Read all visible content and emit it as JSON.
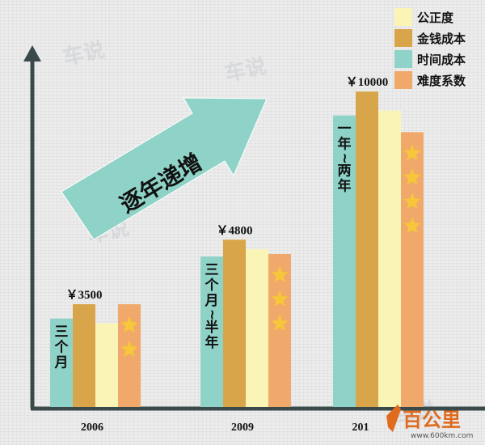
{
  "chart_data": {
    "type": "bar",
    "categories": [
      "2006",
      "2009",
      "201"
    ],
    "legend": [
      "公正度",
      "金钱成本",
      "时间成本",
      "难度系数"
    ],
    "price_labels": [
      "￥3500",
      "￥4800",
      "￥10000"
    ],
    "time_labels": [
      "三个月",
      "三个月~半年",
      "一年~两年"
    ],
    "series": [
      {
        "name": "时间成本",
        "values": [
          3.7,
          6.3,
          12.2
        ]
      },
      {
        "name": "金钱成本",
        "values": [
          4.3,
          7.0,
          13.2
        ]
      },
      {
        "name": "公正度",
        "values": [
          3.5,
          6.6,
          12.4
        ]
      },
      {
        "name": "难度系数",
        "values": [
          4.3,
          6.4,
          11.5
        ]
      }
    ],
    "stars": [
      2,
      3,
      4
    ],
    "annotation": "逐年递增",
    "watermark": "车说",
    "ylim": [
      0,
      15
    ],
    "grid": false,
    "legend_position": "top-right"
  },
  "colors": {
    "time_cost": "#8fd3c8",
    "money_cost": "#d9a54a",
    "fairness": "#faf4b6",
    "difficulty": "#f0a96a",
    "star": "#f7c63a",
    "arrow": "#8fd3c8",
    "axis": "#3a4a4a"
  },
  "logo": {
    "text": "百公里",
    "url": "www.600km.com"
  }
}
